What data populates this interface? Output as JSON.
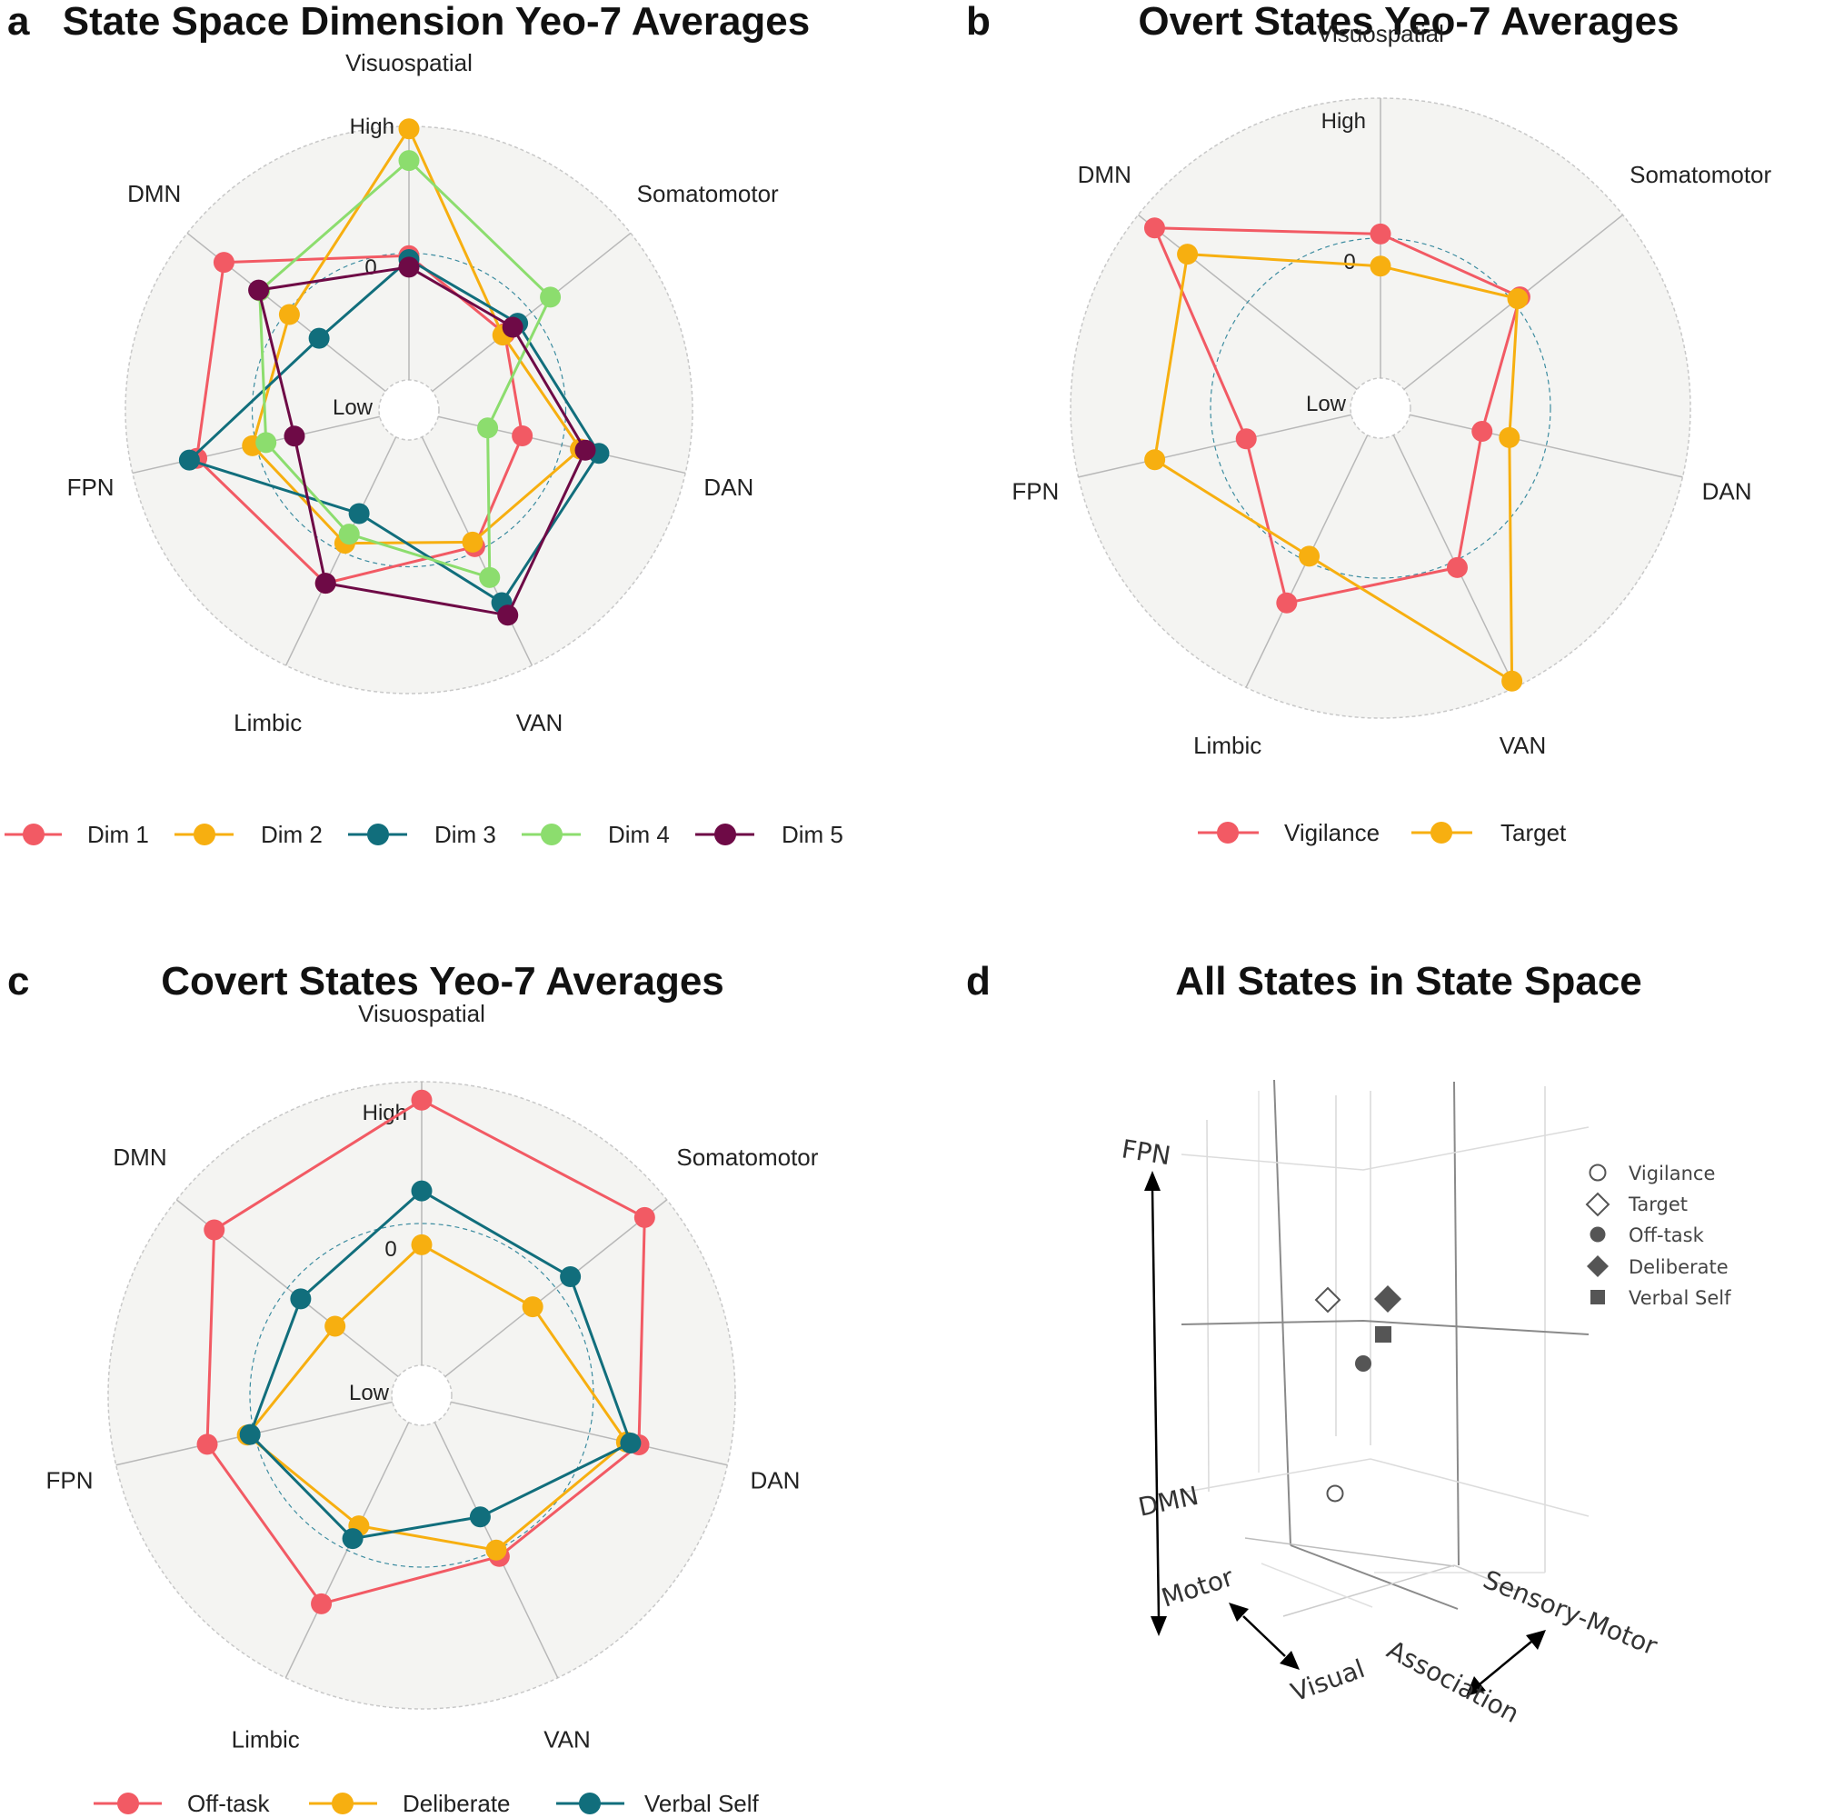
{
  "colors": {
    "red": "#F25A64",
    "orange": "#F7AF10",
    "teal": "#116E7C",
    "green": "#8CDD6E",
    "purple": "#6E0A46",
    "bg": "#F4F4F2",
    "grid": "#B8B8B8",
    "ring": "#3C8CA0",
    "marker3d": "#555555"
  },
  "chart_data": [
    {
      "id": "a",
      "type": "radar",
      "letter": "a",
      "title": "State Space Dimension Yeo-7 Averages",
      "axes": [
        "Visuospatial",
        "Somatomotor",
        "DAN",
        "VAN",
        "Limbic",
        "FPN",
        "DMN"
      ],
      "scale": {
        "high": "High",
        "low": "Low",
        "zero": "0",
        "range": [
          -1,
          1
        ]
      },
      "series": [
        {
          "name": "Dim 1",
          "color": "red",
          "values": [
            -0.02,
            -0.27,
            -0.32,
            -0.04,
            0.28,
            0.48,
            0.63
          ]
        },
        {
          "name": "Dim 2",
          "color": "orange",
          "values": [
            0.98,
            -0.29,
            0.15,
            -0.08,
            -0.07,
            0.03,
            -0.03
          ]
        },
        {
          "name": "Dim 3",
          "color": "teal",
          "values": [
            -0.05,
            -0.14,
            0.3,
            0.45,
            -0.33,
            0.54,
            -0.33
          ]
        },
        {
          "name": "Dim 4",
          "color": "green",
          "values": [
            0.73,
            0.19,
            -0.6,
            0.23,
            -0.15,
            -0.08,
            0.27
          ]
        },
        {
          "name": "Dim 5",
          "color": "purple",
          "values": [
            -0.11,
            -0.19,
            0.19,
            0.56,
            0.28,
            -0.31,
            0.28
          ]
        }
      ]
    },
    {
      "id": "b",
      "type": "radar",
      "letter": "b",
      "title": "Overt States Yeo-7 Averages",
      "axes": [
        "Visuospatial",
        "Somatomotor",
        "DAN",
        "VAN",
        "Limbic",
        "FPN",
        "DMN"
      ],
      "scale": {
        "high": "High",
        "low": "Low",
        "zero": "0",
        "range": [
          -1,
          1
        ]
      },
      "series": [
        {
          "name": "Vigilance",
          "color": "red",
          "values": [
            0.03,
            0.06,
            -0.47,
            0.05,
            0.33,
            -0.23,
            0.85
          ]
        },
        {
          "name": "Target",
          "color": "orange",
          "values": [
            -0.2,
            0.04,
            -0.27,
            0.95,
            -0.04,
            0.44,
            0.55
          ]
        }
      ]
    },
    {
      "id": "c",
      "type": "radar",
      "letter": "c",
      "title": "Covert States Yeo-7 Averages",
      "axes": [
        "Visuospatial",
        "Somatomotor",
        "DAN",
        "VAN",
        "Limbic",
        "FPN",
        "DMN"
      ],
      "scale": {
        "high": "High",
        "low": "Low",
        "zero": "0",
        "range": [
          -1,
          1
        ]
      },
      "series": [
        {
          "name": "Off-task",
          "color": "red",
          "values": [
            0.87,
            0.8,
            0.36,
            0.05,
            0.42,
            0.34,
            0.66
          ]
        },
        {
          "name": "Deliberate",
          "color": "orange",
          "values": [
            -0.15,
            -0.21,
            0.27,
            0.0,
            -0.19,
            0.05,
            -0.43
          ]
        },
        {
          "name": "Verbal Self",
          "color": "teal",
          "values": [
            0.23,
            0.13,
            0.3,
            -0.26,
            -0.09,
            0.03,
            -0.12
          ]
        }
      ]
    },
    {
      "id": "d",
      "type": "scatter3d",
      "letter": "d",
      "title": "All States in State Space",
      "axis_labels": {
        "vertical_top": "FPN",
        "vertical_bottom": "DMN",
        "left_a": "Motor",
        "left_b": "Visual",
        "right_a": "Association",
        "right_b": "Sensory-Motor"
      },
      "legend": [
        {
          "name": "Vigilance",
          "symbol": "circle-open"
        },
        {
          "name": "Target",
          "symbol": "diamond-open"
        },
        {
          "name": "Off-task",
          "symbol": "circle"
        },
        {
          "name": "Deliberate",
          "symbol": "diamond"
        },
        {
          "name": "Verbal Self",
          "symbol": "square"
        }
      ]
    }
  ]
}
